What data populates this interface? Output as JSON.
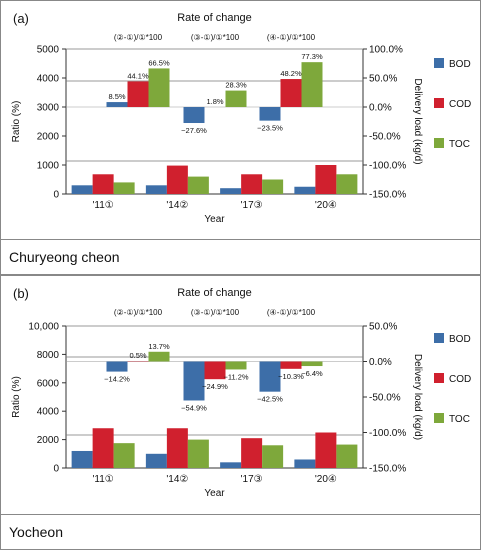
{
  "chart_data": [
    {
      "type": "bar",
      "panel_label": "(a)",
      "title": "Rate of change",
      "formulas": [
        "(②-①)/①*100",
        "(③-①)/①*100",
        "(④-①)/①*100"
      ],
      "categories": [
        "'11①",
        "'14②",
        "'17③",
        "'20④"
      ],
      "xlabel": "Year",
      "ylabel_left": "Ratio (%)",
      "ylabel_right": "Delivery load (kg/d)",
      "left_axis": {
        "min": 0,
        "max": 5000,
        "ticks": [
          "0",
          "1000",
          "2000",
          "3000",
          "4000",
          "5000"
        ]
      },
      "right_axis": {
        "min": -150,
        "max": 100,
        "ticks": [
          "-150.0%",
          "-100.0%",
          "-50.0%",
          "0.0%",
          "50.0%",
          "100.0%"
        ]
      },
      "legend": [
        "BOD",
        "COD",
        "TOC"
      ],
      "legend_position": "right",
      "load_series": [
        {
          "name": "BOD",
          "values": [
            300,
            300,
            200,
            250
          ]
        },
        {
          "name": "COD",
          "values": [
            680,
            980,
            680,
            1000
          ]
        },
        {
          "name": "TOC",
          "values": [
            400,
            600,
            500,
            680
          ]
        }
      ],
      "rate_series": [
        {
          "name": "BOD",
          "values": [
            8.5,
            -27.6,
            -23.5
          ]
        },
        {
          "name": "COD",
          "values": [
            44.1,
            null,
            48.2
          ]
        },
        {
          "name": "TOC",
          "values": [
            66.5,
            28.3,
            77.3
          ]
        }
      ],
      "rate_labels": [
        [
          "8.5%",
          "−27.6%",
          "−23.5%"
        ],
        [
          "44.1%",
          "1.8%",
          "48.2%"
        ],
        [
          "66.5%",
          "28.3%",
          "77.3%"
        ]
      ],
      "caption": "Churyeong cheon",
      "colors": {
        "BOD": "#3d6ea8",
        "COD": "#d0202e",
        "TOC": "#7ea83b"
      }
    },
    {
      "type": "bar",
      "panel_label": "(b)",
      "title": "Rate of change",
      "formulas": [
        "(②-①)/①*100",
        "(③-①)/①*100",
        "(④-①)/①*100"
      ],
      "categories": [
        "'11①",
        "'14②",
        "'17③",
        "'20④"
      ],
      "xlabel": "Year",
      "ylabel_left": "Ratio (%)",
      "ylabel_right": "Delivery load (kg/d)",
      "left_axis": {
        "min": 0,
        "max": 10000,
        "ticks": [
          "0",
          "2000",
          "4000",
          "6000",
          "8000",
          "10,000"
        ]
      },
      "right_axis": {
        "min": -150,
        "max": 50,
        "ticks": [
          "-150.0%",
          "-100.0%",
          "-50.0%",
          "0.0%",
          "50.0%"
        ]
      },
      "legend": [
        "BOD",
        "COD",
        "TOC"
      ],
      "legend_position": "right",
      "load_series": [
        {
          "name": "BOD",
          "values": [
            1200,
            1000,
            400,
            600
          ]
        },
        {
          "name": "COD",
          "values": [
            2800,
            2800,
            2100,
            2500
          ]
        },
        {
          "name": "TOC",
          "values": [
            1750,
            2000,
            1600,
            1650
          ]
        }
      ],
      "rate_series": [
        {
          "name": "BOD",
          "values": [
            -14.2,
            -54.9,
            -42.5
          ]
        },
        {
          "name": "COD",
          "values": [
            0.5,
            -24.9,
            -10.3
          ]
        },
        {
          "name": "TOC",
          "values": [
            13.7,
            -11.2,
            -6.4
          ]
        }
      ],
      "rate_labels": [
        [
          "−14.2%",
          "−54.9%",
          "−42.5%"
        ],
        [
          "0.5%",
          "−24.9%",
          "−10.3%"
        ],
        [
          "13.7%",
          "−11.2%",
          "−6.4%"
        ]
      ],
      "caption": "Yocheon",
      "colors": {
        "BOD": "#3d6ea8",
        "COD": "#d0202e",
        "TOC": "#7ea83b"
      }
    }
  ]
}
